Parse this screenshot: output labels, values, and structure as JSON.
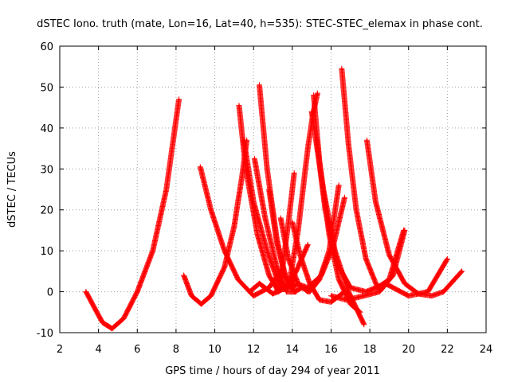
{
  "chart_data": {
    "type": "scatter",
    "title": "dSTEC Iono. truth (mate, Lon=16, Lat=40, h=535): STEC-STEC_elemax in phase cont.",
    "xlabel": "GPS time / hours of day 294 of year 2011",
    "ylabel": "dSTEC  / TECUs",
    "xlim": [
      2,
      24
    ],
    "ylim": [
      -10,
      60
    ],
    "xticks": [
      2,
      4,
      6,
      8,
      10,
      12,
      14,
      16,
      18,
      20,
      22,
      24
    ],
    "yticks": [
      -10,
      0,
      10,
      20,
      30,
      40,
      50,
      60
    ],
    "grid": true,
    "marker": "+",
    "color": "#ff0000",
    "series": [
      {
        "x": [
          3.35,
          3.8,
          4.2,
          4.7,
          5.3,
          6.0,
          6.8,
          7.5,
          8.15
        ],
        "y": [
          0,
          -4,
          -7.5,
          -9,
          -6.5,
          0,
          10,
          25,
          47
        ]
      },
      {
        "x": [
          8.4,
          8.8,
          9.3,
          9.8,
          10.5,
          11.0,
          11.4,
          11.65
        ],
        "y": [
          4,
          -1,
          -3,
          -1,
          6,
          16,
          28,
          37
        ]
      },
      {
        "x": [
          9.25,
          9.8,
          10.5,
          11.2,
          12.0,
          12.8,
          13.4
        ],
        "y": [
          30.5,
          20,
          10,
          3,
          -1,
          1,
          5
        ]
      },
      {
        "x": [
          11.25,
          11.6,
          12.2,
          12.8,
          13.3,
          13.6
        ],
        "y": [
          45.5,
          30,
          14,
          4,
          0,
          2
        ]
      },
      {
        "x": [
          11.5,
          12.0,
          12.7,
          13.3,
          13.8,
          14.1
        ],
        "y": [
          37,
          22,
          10,
          2,
          1,
          3
        ]
      },
      {
        "x": [
          12.3,
          12.7,
          13.2,
          13.6,
          14.0,
          14.3
        ],
        "y": [
          50.5,
          30,
          13,
          4,
          1,
          2
        ]
      },
      {
        "x": [
          11.8,
          12.3,
          13.0,
          13.7,
          14.2,
          14.8
        ],
        "y": [
          0,
          2,
          -0.5,
          1,
          5,
          11.5
        ]
      },
      {
        "x": [
          12.05,
          12.6,
          13.2,
          13.7,
          14.2
        ],
        "y": [
          32.5,
          18,
          6,
          0,
          0
        ]
      },
      {
        "x": [
          12.8,
          13.2,
          13.7,
          14.1,
          14.5
        ],
        "y": [
          25,
          12,
          3,
          0,
          1
        ]
      },
      {
        "x": [
          13.2,
          13.5,
          13.8,
          14.1
        ],
        "y": [
          0,
          6,
          17,
          29
        ]
      },
      {
        "x": [
          13.4,
          13.8,
          14.3,
          14.8
        ],
        "y": [
          18,
          8,
          2,
          0
        ]
      },
      {
        "x": [
          14.0,
          14.4,
          14.9,
          15.4,
          16.0,
          16.7
        ],
        "y": [
          17,
          9,
          2,
          -2,
          -2.5,
          0
        ]
      },
      {
        "x": [
          13.8,
          14.3,
          14.8,
          15.05,
          15.3
        ],
        "y": [
          1,
          15,
          35,
          43,
          48.5
        ]
      },
      {
        "x": [
          15.1,
          15.4,
          15.9,
          16.4,
          17.0,
          17.5
        ],
        "y": [
          48,
          32,
          14,
          3,
          -3,
          -5
        ]
      },
      {
        "x": [
          15.0,
          15.6,
          16.2,
          16.9,
          17.7
        ],
        "y": [
          44,
          25,
          10,
          0,
          -8
        ]
      },
      {
        "x": [
          15.25,
          15.7,
          16.3,
          17.0,
          17.8,
          18.8,
          20.0,
          21.0,
          22.0
        ],
        "y": [
          37,
          20,
          7,
          1,
          0,
          2,
          -1,
          0,
          8
        ]
      },
      {
        "x": [
          14.5,
          14.9,
          15.4,
          15.9,
          16.4
        ],
        "y": [
          1,
          0,
          3,
          10,
          26
        ]
      },
      {
        "x": [
          14.2,
          14.8,
          15.5,
          16.1,
          16.7
        ],
        "y": [
          2,
          1,
          4,
          11,
          23
        ]
      },
      {
        "x": [
          16.55,
          16.9,
          17.3,
          17.8,
          18.4,
          19.0,
          19.75
        ],
        "y": [
          54.5,
          36,
          20,
          8,
          1,
          3,
          15
        ]
      },
      {
        "x": [
          17.85,
          18.3,
          19.0,
          19.8,
          20.5,
          21.2,
          21.8,
          22.75
        ],
        "y": [
          37,
          22,
          9,
          2,
          -0.5,
          -1,
          0,
          5
        ]
      },
      {
        "x": [
          16.0,
          16.8,
          17.7,
          18.5,
          19.2,
          19.8
        ],
        "y": [
          -1,
          -2,
          -1,
          0,
          4,
          15
        ]
      }
    ]
  }
}
